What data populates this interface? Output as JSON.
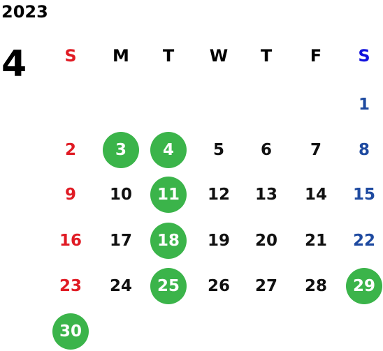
{
  "year": "2023",
  "month": "4",
  "weekdays": [
    "S",
    "M",
    "T",
    "W",
    "T",
    "F",
    "S"
  ],
  "colors": {
    "sunday": "#e01b24",
    "saturday": "#1e4aa0",
    "highlight": "#3bb44a",
    "weekday": "#111111"
  },
  "weeks": [
    [
      null,
      null,
      null,
      null,
      null,
      null,
      1
    ],
    [
      2,
      3,
      4,
      5,
      6,
      7,
      8
    ],
    [
      9,
      10,
      11,
      12,
      13,
      14,
      15
    ],
    [
      16,
      17,
      18,
      19,
      20,
      21,
      22
    ],
    [
      23,
      24,
      25,
      26,
      27,
      28,
      29
    ],
    [
      30,
      null,
      null,
      null,
      null,
      null,
      null
    ]
  ],
  "highlighted_days": [
    3,
    4,
    11,
    18,
    25,
    29,
    30
  ]
}
